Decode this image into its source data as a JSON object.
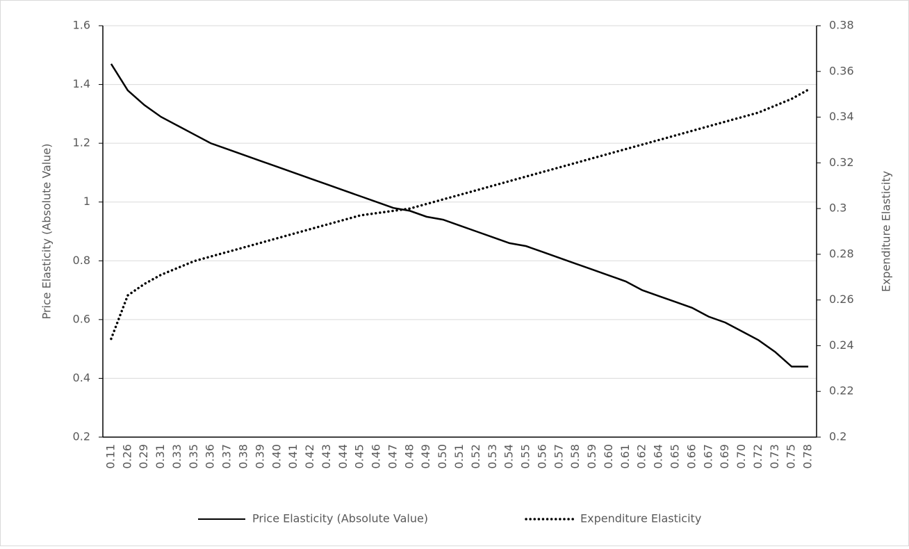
{
  "chart_data": {
    "type": "line",
    "categories": [
      "0.11",
      "0.26",
      "0.29",
      "0.31",
      "0.33",
      "0.35",
      "0.36",
      "0.37",
      "0.38",
      "0.39",
      "0.40",
      "0.41",
      "0.42",
      "0.43",
      "0.44",
      "0.45",
      "0.46",
      "0.47",
      "0.48",
      "0.49",
      "0.50",
      "0.51",
      "0.52",
      "0.53",
      "0.54",
      "0.55",
      "0.56",
      "0.57",
      "0.58",
      "0.59",
      "0.60",
      "0.61",
      "0.62",
      "0.64",
      "0.65",
      "0.66",
      "0.67",
      "0.69",
      "0.70",
      "0.72",
      "0.73",
      "0.75",
      "0.78"
    ],
    "series": [
      {
        "name": "Price Elasticity (Absolute Value)",
        "color": "#000000",
        "dash": "solid",
        "values": [
          1.47,
          1.38,
          1.33,
          1.29,
          1.26,
          1.23,
          1.2,
          1.18,
          1.16,
          1.14,
          1.12,
          1.1,
          1.08,
          1.06,
          1.04,
          1.02,
          1.0,
          0.98,
          0.97,
          0.95,
          0.94,
          0.92,
          0.9,
          0.88,
          0.86,
          0.85,
          0.83,
          0.81,
          0.79,
          0.77,
          0.75,
          0.73,
          0.7,
          0.68,
          0.66,
          0.64,
          0.61,
          0.59,
          0.56,
          0.53,
          0.49,
          0.44,
          0.44
        ]
      },
      {
        "name": "Expenditure Elasticity",
        "color": "#000000",
        "dash": "dotted",
        "axis": "y2",
        "values": [
          0.243,
          0.262,
          0.267,
          0.271,
          0.274,
          0.277,
          0.279,
          0.281,
          0.283,
          0.285,
          0.287,
          0.289,
          0.291,
          0.293,
          0.295,
          0.297,
          0.298,
          0.299,
          0.3,
          0.302,
          0.304,
          0.306,
          0.308,
          0.31,
          0.312,
          0.314,
          0.316,
          0.318,
          0.32,
          0.322,
          0.324,
          0.326,
          0.328,
          0.33,
          0.332,
          0.334,
          0.336,
          0.338,
          0.34,
          0.342,
          0.345,
          0.348,
          0.352
        ]
      }
    ],
    "ylabel": "Price Elasticity (Absolute Value)",
    "y2label": "Expenditure Elasticity",
    "ylim": [
      0.2,
      1.6
    ],
    "yticks": [
      0.2,
      0.4,
      0.6,
      0.8,
      1,
      1.2,
      1.4,
      1.6
    ],
    "y2lim": [
      0.2,
      0.38
    ],
    "y2ticks": [
      0.2,
      0.22,
      0.24,
      0.26,
      0.28,
      0.3,
      0.32,
      0.34,
      0.36,
      0.38
    ],
    "grid": true,
    "legend": "bottom"
  }
}
